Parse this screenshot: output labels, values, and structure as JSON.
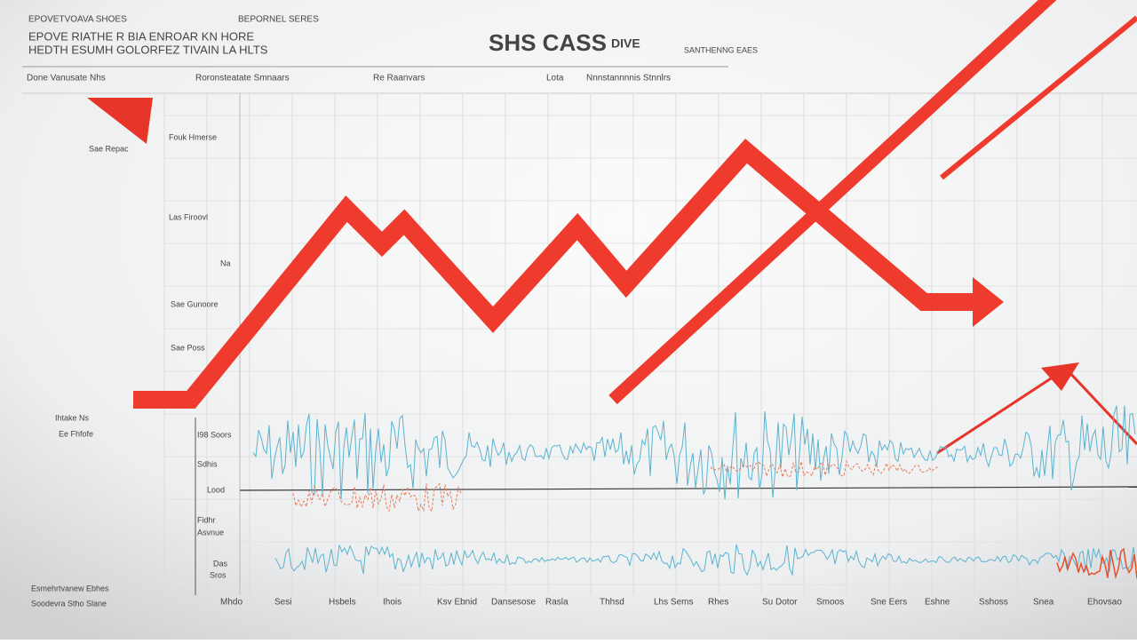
{
  "header": {
    "title": "SHS CASS",
    "title_suffix": "DIVE",
    "top_left": [
      "EPOVE RIATHE R BIA ENROAR KN HORE",
      "HEDTH ESUMH GOLORFEZ TIVAIN LA HLTS"
    ],
    "top_left_small": [
      "EPOVETVOAVA SHOES",
      "BEPORNEL SERES"
    ],
    "top_right": "SANTHENNG EAES"
  },
  "subheader": [
    "Done Vanusate Nhs",
    "Roronsteatate Smnaars",
    "Re Raanvars",
    "Lota",
    "Nnnstannnnis Stnnlrs"
  ],
  "left_labels": [
    "Sae Repac",
    "Fouk Hmerse",
    "Las Firoovl",
    "Na",
    "Sae Gunoore",
    "Sae Poss",
    "Ihtake Ns",
    "Ee Fhfofe"
  ],
  "axis_labels": [
    "I98 Soors",
    "Sdhis",
    "Lood",
    "Fidhr",
    "Asvnue",
    "Das",
    "Sros"
  ],
  "footer_left": [
    "Esmehrtvanew Ebhes",
    "Soodevra Stho Slane"
  ],
  "x_labels": [
    "Mhdo",
    "Sesi",
    "Hsbels",
    "Ihois",
    "Ksv Ebnid",
    "Dansesose",
    "Rasla",
    "Thhsd",
    "Lhs Sems",
    "Rhes",
    "Su Dotor",
    "Smoos",
    "Sne Eers",
    "Eshne",
    "Sshoss",
    "Snea",
    "Ehovsao"
  ]
}
